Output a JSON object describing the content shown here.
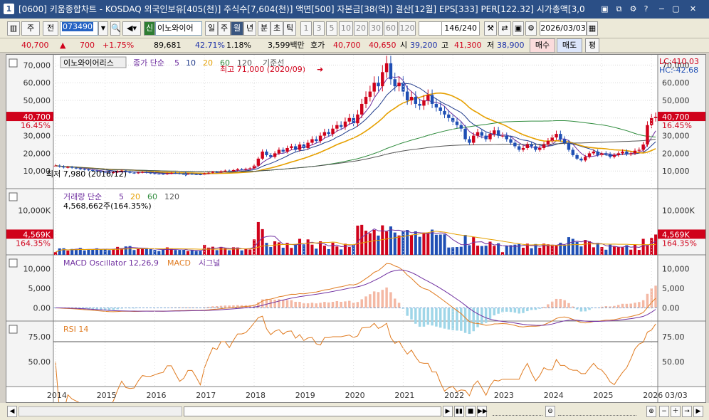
{
  "window": {
    "title": "[0600] 키움종합차트 - KOSDAQ 외국인보유[405(천)] 주식수[7,604(천)] 액면[500] 자본금[38(억)] 결산[12월] EPS[333] PER[122.32] 시가총액[3,0",
    "number_badge": "1",
    "controls": [
      "▣",
      "⧉",
      "?",
      "−",
      "▢",
      "✕"
    ]
  },
  "toolbar": {
    "market_label": "주",
    "all_label": "전",
    "code": "073490",
    "prefix_badge": "신",
    "stock_name": "이노와이어",
    "periods": [
      "일",
      "주",
      "월",
      "년",
      "분",
      "초",
      "틱"
    ],
    "active_period": "월",
    "intervals": [
      "1",
      "3",
      "5",
      "10",
      "20",
      "30",
      "60",
      "120"
    ],
    "count": "146/240",
    "date": "2026/03/03"
  },
  "quote": {
    "price": "40,700",
    "change": "700",
    "change_pct": "+1.75%",
    "volume": "89,681",
    "vol_ratio": "42.71%",
    "turnover": "1.18%",
    "amount": "3,599백만",
    "ask_label": "호가",
    "ask1": "40,700",
    "ask2": "40,650",
    "open_label": "시",
    "open": "39,200",
    "high_label": "고",
    "high": "41,300",
    "low_label": "저",
    "low": "38,900",
    "buy_label": "매수",
    "sell_label": "매도",
    "flat_label": "평"
  },
  "colors": {
    "up": "#d0021b",
    "down": "#1f4fb4",
    "ma5": "#7030a0",
    "ma10": "#1f3a8a",
    "ma20": "#e6a000",
    "ma60": "#2e8b3c",
    "ma120": "#555555"
  },
  "price_pane": {
    "legend_name": "이노와이어리스",
    "legend_ma": "종가 단순",
    "ma_periods": [
      "5",
      "10",
      "20",
      "60",
      "120"
    ],
    "legend_extra": "기준선",
    "y_ticks": [
      "70,000",
      "60,000",
      "50,000",
      "40,000",
      "30,000",
      "20,000",
      "10,000"
    ],
    "lc": "LC:410.03",
    "hc": "HC:-42.68",
    "current_tag": "40,700",
    "pct_tag": "16.45%",
    "max_label": "최고 71,000 (2020/09)",
    "min_label": "최저 7,980 (2016/12)"
  },
  "volume_pane": {
    "legend": "거래량 단순",
    "ma_periods": [
      "5",
      "20",
      "60",
      "120"
    ],
    "info": "4,568,662주(164.35%)",
    "y_ticks": [
      "10,000K",
      "5,000K"
    ],
    "current_tag": "4,569K",
    "pct_tag": "164.35%"
  },
  "macd_pane": {
    "legend_osc": "MACD Oscillator 12,26,9",
    "legend_macd": "MACD",
    "legend_signal": "시그널",
    "y_ticks": [
      "10,000",
      "5,000",
      "0.00"
    ]
  },
  "rsi_pane": {
    "legend": "RSI 14",
    "y_ticks": [
      "75.00",
      "50.00"
    ]
  },
  "x_axis": {
    "labels": [
      "2014",
      "2015",
      "2016",
      "2017",
      "2018",
      "2019",
      "2020",
      "2021",
      "2022",
      "2023",
      "2024",
      "2025",
      "2026"
    ],
    "right_label": "03/03"
  },
  "chart_data": {
    "type": "candlestick",
    "period": "monthly",
    "x_start": "2014-01",
    "x_end": "2026-03",
    "ylim": [
      0,
      75000
    ],
    "max": {
      "value": 71000,
      "date": "2020/09"
    },
    "min": {
      "value": 7980,
      "date": "2016/12"
    },
    "close_series": [
      13000,
      12500,
      12000,
      12200,
      11800,
      11500,
      11000,
      10800,
      10500,
      10200,
      9800,
      9500,
      9200,
      9000,
      9300,
      9800,
      10200,
      9600,
      9000,
      8800,
      9100,
      9400,
      9000,
      8700,
      8500,
      8400,
      8200,
      8600,
      8900,
      8700,
      8500,
      8300,
      8400,
      8200,
      8100,
      8000,
      8600,
      9000,
      9500,
      9300,
      9800,
      10200,
      10000,
      10500,
      11000,
      10800,
      11200,
      11500,
      13000,
      17000,
      21000,
      19000,
      18000,
      20000,
      22000,
      21000,
      23000,
      24000,
      22000,
      25000,
      23000,
      26000,
      28000,
      27000,
      30000,
      32000,
      31000,
      34000,
      36000,
      35000,
      38000,
      40000,
      37000,
      42000,
      48000,
      52000,
      55000,
      60000,
      58000,
      66000,
      71000,
      62000,
      58000,
      60000,
      55000,
      50000,
      52000,
      48000,
      47000,
      50000,
      53000,
      48000,
      46000,
      44000,
      42000,
      40000,
      38000,
      36000,
      34000,
      28000,
      26000,
      30000,
      32000,
      30000,
      28000,
      31000,
      33000,
      30000,
      30000,
      28000,
      26000,
      24000,
      22000,
      23000,
      25000,
      24000,
      22000,
      23000,
      25000,
      27000,
      29000,
      31000,
      28000,
      26000,
      22000,
      19000,
      17000,
      16000,
      18000,
      20000,
      21000,
      19000,
      20000,
      19500,
      18000,
      19000,
      20000,
      21000,
      19500,
      20000,
      21500,
      22000,
      25000,
      36000,
      40000,
      40700
    ]
  }
}
